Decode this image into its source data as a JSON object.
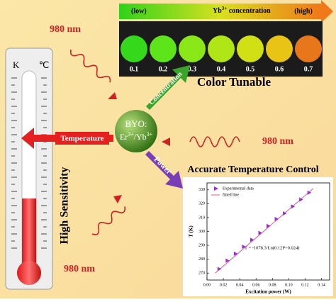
{
  "concentration_bar": {
    "low": "(low)",
    "ion": "Yb",
    "charge": "3+",
    "label": " concentration",
    "high": "(high)"
  },
  "samples": [
    "0.1",
    "0.2",
    "0.3",
    "0.4",
    "0.5",
    "0.6",
    "0.7"
  ],
  "color_tunable": "Color Tunable",
  "thermometer": {
    "left_unit": "K",
    "right_unit": "℃"
  },
  "excitation_labels": [
    "980 nm",
    "980 nm",
    "980 nm"
  ],
  "center": {
    "host": "BYO:",
    "ion1": "Er",
    "charge1": "3+",
    "ion2": "/Yb",
    "charge2": "3+"
  },
  "arrows": {
    "up": "Concentration",
    "left": "Temperature",
    "down": "Power"
  },
  "high_sensitivity": "High Sensitivity",
  "accurate_control": "Accurate Temperature Control",
  "chart_data": {
    "type": "scatter",
    "x_label": "Excitation power (W)",
    "y_label": "T (K)",
    "equation": "T = -1078.3/Ln(0.12P+0.024)",
    "xlim": [
      0,
      0.15
    ],
    "ylim": [
      265,
      335
    ],
    "xticks": [
      {
        "value": 0,
        "label": "0.00"
      },
      {
        "value": 0.02,
        "label": "0.02"
      },
      {
        "value": 0.04,
        "label": "0.04"
      },
      {
        "value": 0.06,
        "label": "0.06"
      },
      {
        "value": 0.08,
        "label": "0.08"
      },
      {
        "value": 0.1,
        "label": "0.10"
      },
      {
        "value": 0.12,
        "label": "0.12"
      },
      {
        "value": 0.14,
        "label": "0.14"
      }
    ],
    "yticks": [
      270,
      280,
      290,
      300,
      310,
      320,
      330
    ],
    "series": [
      {
        "name": "Experimental data",
        "color": "#9b2fc9",
        "x": [
          0.015,
          0.025,
          0.035,
          0.045,
          0.055,
          0.065,
          0.075,
          0.085,
          0.095,
          0.105,
          0.115,
          0.125
        ],
        "values": [
          273,
          279,
          284,
          289,
          294,
          299,
          304,
          309,
          313,
          318,
          323,
          328
        ]
      },
      {
        "name": "fitted line",
        "color": "#e0559a",
        "x": [
          0.01,
          0.13
        ],
        "values": [
          270,
          331
        ]
      }
    ]
  }
}
